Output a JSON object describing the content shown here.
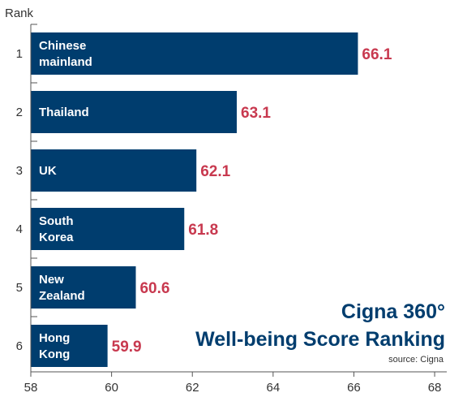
{
  "chart_data": {
    "type": "bar",
    "orientation": "horizontal",
    "title_lines": [
      "Cigna 360°",
      "Well-being Score Ranking"
    ],
    "source": "source: Cigna",
    "rank_header": "Rank",
    "ranks": [
      "1",
      "2",
      "3",
      "4",
      "5",
      "6"
    ],
    "categories": [
      [
        "Chinese",
        "mainland"
      ],
      [
        "Thailand"
      ],
      [
        "UK"
      ],
      [
        "South",
        "Korea"
      ],
      [
        "New",
        "Zealand"
      ],
      [
        "Hong",
        "Kong"
      ]
    ],
    "values": [
      66.1,
      63.1,
      62.1,
      61.8,
      60.6,
      59.9
    ],
    "value_labels": [
      "66.1",
      "63.1",
      "62.1",
      "61.8",
      "60.6",
      "59.9"
    ],
    "xlim": [
      58,
      68.3
    ],
    "xticks": [
      "58",
      "60",
      "62",
      "64",
      "66",
      "68"
    ],
    "grid": false,
    "colors": {
      "bar": "#003d6e",
      "value": "#c8394f",
      "title": "#003d6e"
    }
  }
}
